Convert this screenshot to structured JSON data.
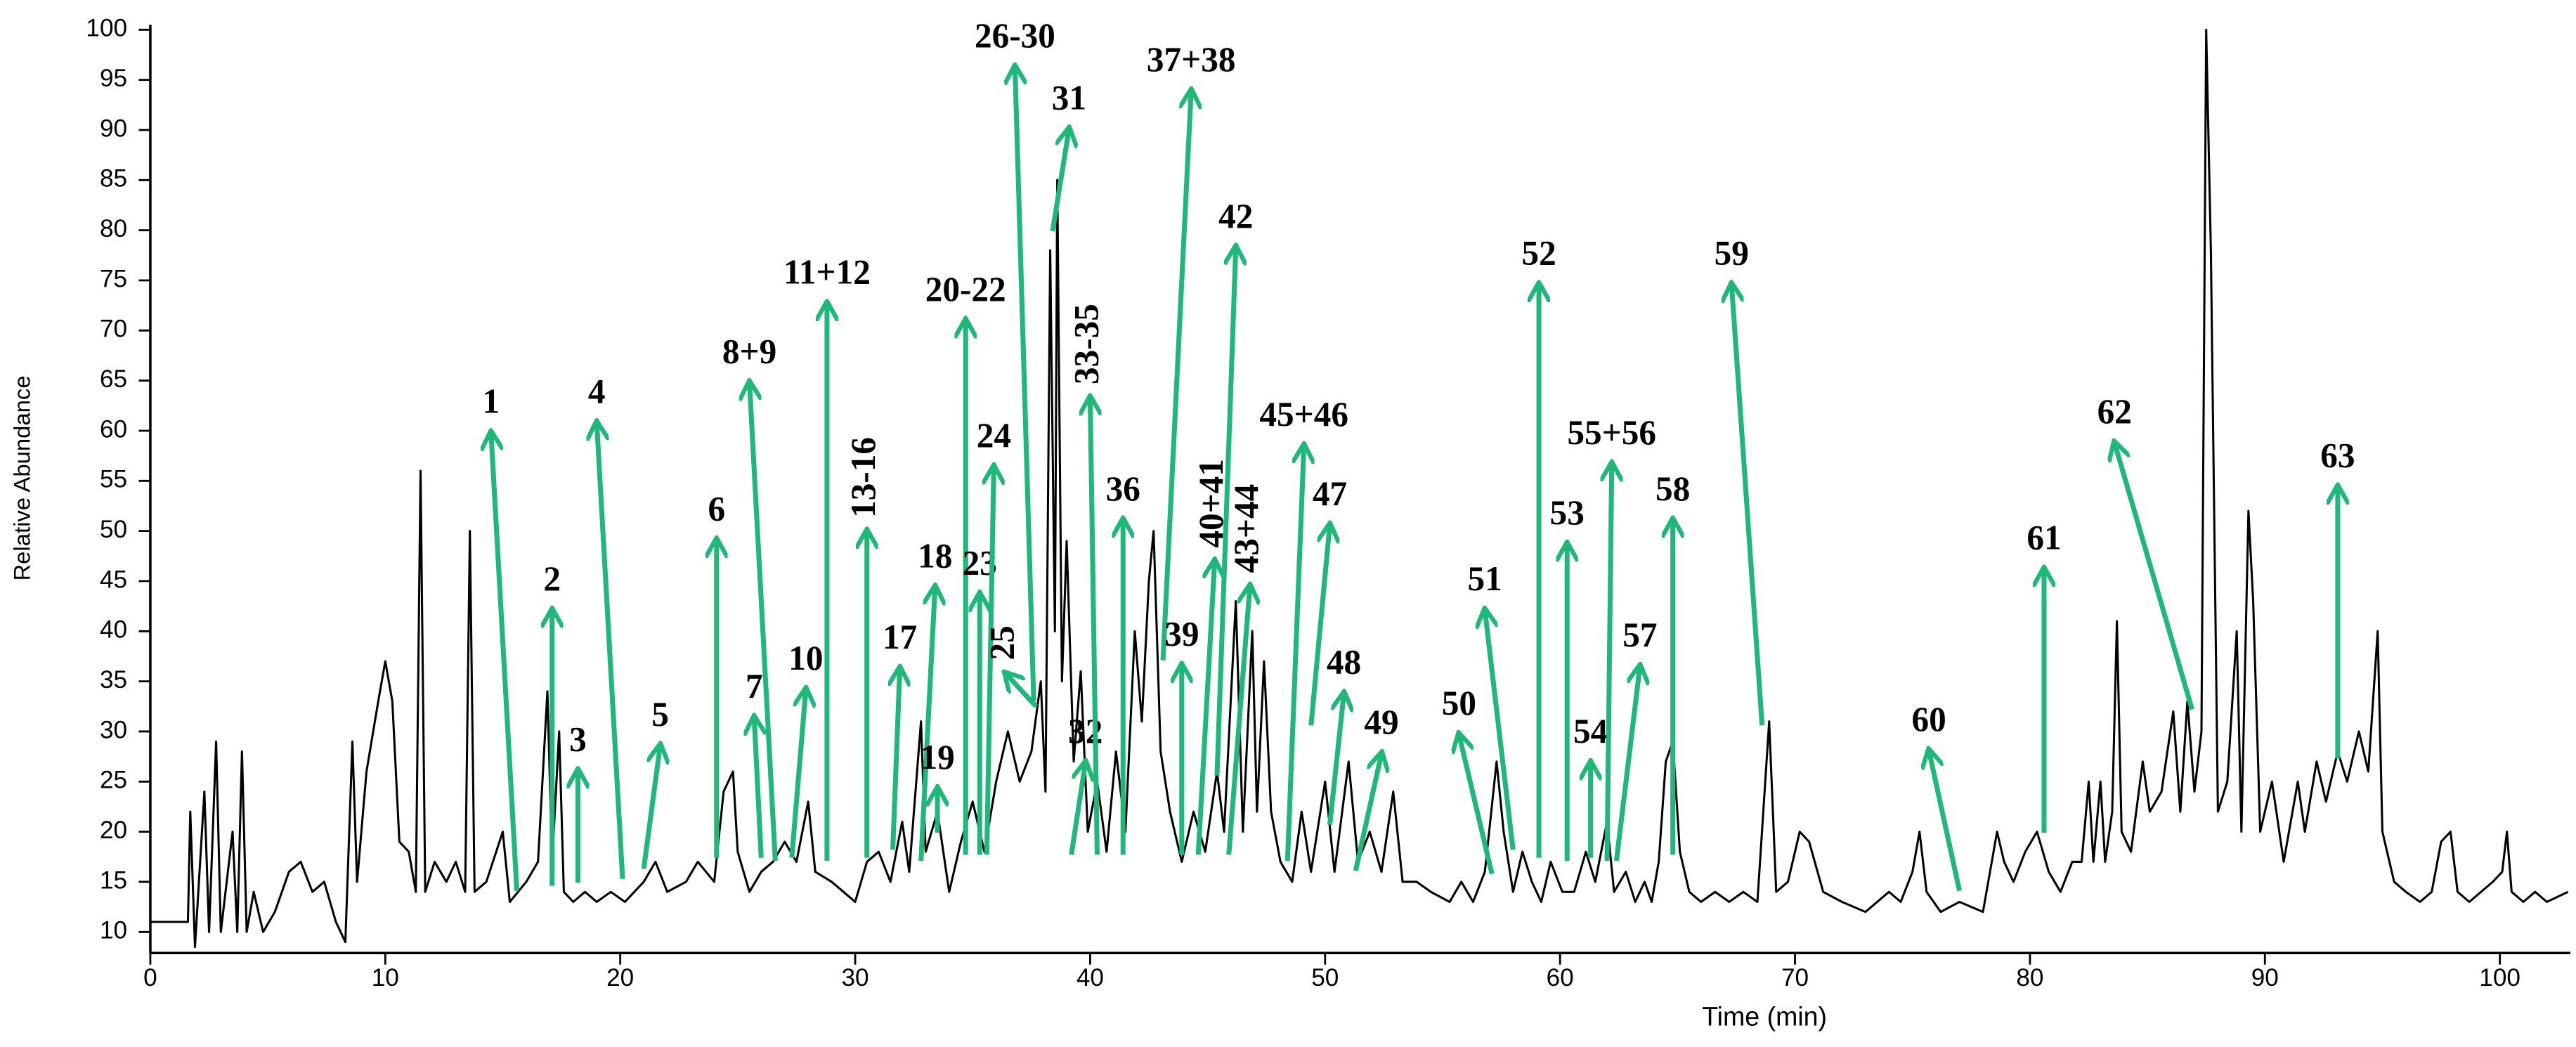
{
  "chart_data": {
    "type": "line",
    "x_label": "Time (min)",
    "y_label": "Relative Abundance",
    "xlim": [
      0,
      103
    ],
    "ylim": [
      7.9,
      100.5
    ],
    "xticks": [
      0,
      10,
      20,
      30,
      40,
      50,
      60,
      70,
      80,
      90,
      100
    ],
    "yticks": [
      10,
      15,
      20,
      25,
      30,
      35,
      40,
      45,
      50,
      55,
      60,
      65,
      70,
      75,
      80,
      85,
      90,
      95,
      100
    ],
    "color": "#000000",
    "annotation_color": "#1fb87a",
    "x": [
      0,
      1.6,
      1.7,
      1.9,
      2.3,
      2.5,
      2.8,
      3.0,
      3.5,
      3.7,
      3.9,
      4.1,
      4.4,
      4.8,
      5.3,
      5.9,
      6.4,
      6.9,
      7.4,
      7.9,
      8.3,
      8.6,
      8.8,
      9.2,
      9.7,
      10.0,
      10.3,
      10.6,
      11.0,
      11.3,
      11.5,
      11.7,
      12.1,
      12.6,
      13.0,
      13.4,
      13.6,
      13.8,
      14.3,
      15.0,
      15.3,
      16.0,
      16.5,
      16.9,
      17.1,
      17.4,
      17.6,
      18.0,
      18.5,
      19.0,
      19.6,
      20.2,
      21.0,
      21.5,
      22.0,
      22.8,
      23.3,
      24.0,
      24.4,
      24.8,
      25.0,
      25.5,
      26.0,
      26.5,
      27.0,
      27.5,
      28.0,
      28.3,
      29.0,
      29.5,
      30.0,
      30.5,
      31.0,
      31.5,
      32.0,
      32.3,
      32.8,
      33.0,
      33.5,
      34.0,
      34.5,
      35.0,
      35.5,
      36.0,
      36.5,
      37.0,
      37.5,
      37.9,
      38.1,
      38.3,
      38.5,
      38.6,
      38.8,
      39.0,
      39.3,
      39.6,
      39.9,
      40.3,
      40.7,
      41.1,
      41.5,
      41.9,
      42.2,
      42.5,
      42.7,
      43.0,
      43.4,
      43.9,
      44.4,
      44.9,
      45.4,
      45.7,
      46.2,
      46.5,
      46.9,
      47.1,
      47.4,
      47.7,
      48.1,
      48.6,
      49.0,
      49.4,
      50.0,
      50.4,
      51.0,
      51.4,
      51.9,
      52.4,
      52.9,
      53.3,
      53.9,
      54.5,
      55.3,
      55.8,
      56.3,
      56.8,
      57.3,
      57.6,
      58.0,
      58.4,
      58.8,
      59.2,
      59.6,
      60.1,
      60.6,
      61.1,
      61.5,
      62.0,
      62.3,
      62.8,
      63.2,
      63.6,
      63.9,
      64.2,
      64.5,
      64.8,
      65.1,
      65.5,
      66.0,
      66.6,
      67.2,
      67.8,
      68.4,
      68.9,
      69.2,
      69.7,
      70.2,
      70.6,
      71.2,
      72.0,
      73.0,
      74.0,
      74.5,
      75.0,
      75.3,
      75.6,
      76.2,
      77.0,
      78.0,
      78.6,
      78.9,
      79.3,
      79.8,
      80.3,
      80.8,
      81.3,
      81.8,
      82.2,
      82.5,
      82.7,
      83.0,
      83.2,
      83.5,
      83.7,
      83.9,
      84.3,
      84.8,
      85.1,
      85.6,
      86.1,
      86.4,
      86.7,
      87.0,
      87.3,
      87.5,
      87.7,
      88.0,
      88.4,
      88.8,
      89.0,
      89.3,
      89.5,
      89.8,
      90.3,
      90.8,
      91.4,
      91.7,
      92.2,
      92.6,
      93.1,
      93.5,
      94.0,
      94.4,
      94.8,
      95.0,
      95.5,
      96.0,
      96.6,
      97.1,
      97.5,
      97.9,
      98.2,
      98.7,
      99.2,
      99.7,
      100.1,
      100.3,
      100.5,
      101.0,
      101.5,
      102.0,
      102.9
    ],
    "values": [
      11,
      11,
      22,
      8.5,
      24,
      10,
      29,
      10,
      20,
      10,
      28,
      10,
      14,
      10,
      12,
      16,
      17,
      14,
      15,
      11,
      9,
      29,
      15,
      26,
      33,
      37,
      33,
      19,
      18,
      14,
      56,
      14,
      17,
      15,
      17,
      14,
      50,
      14,
      15,
      20,
      13,
      15,
      17,
      34,
      17,
      30,
      14,
      13,
      14,
      13,
      14,
      13,
      15,
      17,
      14,
      15,
      17,
      15,
      24,
      26,
      18,
      14,
      16,
      17,
      19,
      17,
      23,
      16,
      15,
      14,
      13,
      17,
      18,
      15,
      21,
      16,
      31,
      18,
      22,
      14,
      19,
      23,
      18,
      25,
      30,
      25,
      28,
      35,
      24,
      78,
      40,
      85,
      35,
      49,
      27,
      36,
      20,
      25,
      18,
      28,
      20,
      40,
      31,
      45,
      50,
      28,
      22,
      17,
      22,
      18,
      26,
      20,
      43,
      20,
      40,
      22,
      37,
      22,
      17,
      15,
      22,
      16,
      25,
      16,
      27,
      17,
      20,
      16,
      24,
      15,
      15,
      14,
      13,
      15,
      13,
      16,
      27,
      20,
      14,
      18,
      15,
      13,
      17,
      14,
      14,
      18,
      15,
      21,
      14,
      16,
      13,
      15,
      13,
      17,
      27,
      29,
      18,
      14,
      13,
      14,
      13,
      14,
      13,
      31,
      14,
      15,
      20,
      19,
      14,
      13,
      12,
      14,
      13,
      16,
      20,
      14,
      12,
      13,
      12,
      20,
      17,
      15,
      18,
      20,
      16,
      14,
      17,
      17,
      25,
      17,
      25,
      17,
      22,
      41,
      20,
      18,
      27,
      22,
      24,
      32,
      22,
      33,
      24,
      30,
      100,
      78,
      22,
      25,
      40,
      20,
      52,
      43,
      20,
      25,
      17,
      25,
      20,
      27,
      23,
      28,
      25,
      30,
      26,
      40,
      20,
      15,
      14,
      13,
      14,
      19,
      20,
      14,
      13,
      14,
      15,
      16,
      20,
      14,
      13,
      14,
      13,
      14
    ],
    "annotations": [
      {
        "text": "1",
        "xy": [
          15.6,
          14.1
        ],
        "xytext": [
          14.5,
          59.8
        ]
      },
      {
        "text": "2",
        "xy": [
          17.1,
          14.6
        ],
        "xytext": [
          17.1,
          42.1
        ]
      },
      {
        "text": "3",
        "xy": [
          18.2,
          14.9
        ],
        "xytext": [
          18.2,
          26.1
        ]
      },
      {
        "text": "4",
        "xy": [
          20.1,
          15.3
        ],
        "xytext": [
          19.0,
          60.8
        ]
      },
      {
        "text": "5",
        "xy": [
          21.0,
          16.3
        ],
        "xytext": [
          21.7,
          28.6
        ]
      },
      {
        "text": "6",
        "xy": [
          24.1,
          17.4
        ],
        "xytext": [
          24.1,
          49.1
        ]
      },
      {
        "text": "7",
        "xy": [
          26.0,
          17.4
        ],
        "xytext": [
          25.7,
          31.4
        ]
      },
      {
        "text": "8+9",
        "xy": [
          26.6,
          17.1
        ],
        "xytext": [
          25.5,
          64.8
        ]
      },
      {
        "text": "10",
        "xy": [
          27.3,
          17.4
        ],
        "xytext": [
          27.9,
          34.2
        ]
      },
      {
        "text": "11+12",
        "xy": [
          28.8,
          17.1
        ],
        "xytext": [
          28.8,
          72.7
        ]
      },
      {
        "text": "13-16",
        "xy": [
          30.5,
          17.4
        ],
        "xytext": [
          30.5,
          50.0
        ],
        "vertical": true
      },
      {
        "text": "17",
        "xy": [
          31.6,
          18.2
        ],
        "xytext": [
          31.9,
          36.3
        ]
      },
      {
        "text": "18",
        "xy": [
          32.8,
          17.1
        ],
        "xytext": [
          33.4,
          44.4
        ]
      },
      {
        "text": "19",
        "xy": [
          33.5,
          19.9
        ],
        "xytext": [
          33.5,
          24.3
        ]
      },
      {
        "text": "20-22",
        "xy": [
          34.7,
          17.7
        ],
        "xytext": [
          34.7,
          71.0
        ]
      },
      {
        "text": "23",
        "xy": [
          35.3,
          17.7
        ],
        "xytext": [
          35.3,
          43.7
        ]
      },
      {
        "text": "24",
        "xy": [
          35.6,
          17.7
        ],
        "xytext": [
          35.9,
          56.4
        ]
      },
      {
        "text": "25",
        "xy": [
          37.7,
          32.5
        ],
        "xytext": [
          36.4,
          35.8
        ],
        "vertical": true
      },
      {
        "text": "26-30",
        "xy": [
          37.6,
          33.0
        ],
        "xytext": [
          36.8,
          96.3
        ]
      },
      {
        "text": "31",
        "xy": [
          38.4,
          79.9
        ],
        "xytext": [
          39.1,
          90.1
        ]
      },
      {
        "text": "32",
        "xy": [
          39.2,
          17.7
        ],
        "xytext": [
          39.8,
          26.9
        ]
      },
      {
        "text": "33-35",
        "xy": [
          40.3,
          17.7
        ],
        "xytext": [
          40.0,
          63.3
        ],
        "vertical": true
      },
      {
        "text": "36",
        "xy": [
          41.4,
          17.7
        ],
        "xytext": [
          41.4,
          51.1
        ]
      },
      {
        "text": "37+38",
        "xy": [
          43.1,
          37.1
        ],
        "xytext": [
          44.3,
          93.9
        ]
      },
      {
        "text": "39",
        "xy": [
          43.9,
          17.7
        ],
        "xytext": [
          43.9,
          36.6
        ]
      },
      {
        "text": "40+41",
        "xy": [
          44.6,
          17.7
        ],
        "xytext": [
          45.3,
          47.0
        ],
        "vertical": true
      },
      {
        "text": "42",
        "xy": [
          45.4,
          25.6
        ],
        "xytext": [
          46.2,
          78.3
        ]
      },
      {
        "text": "43+44",
        "xy": [
          45.9,
          17.7
        ],
        "xytext": [
          46.8,
          44.5
        ],
        "vertical": true
      },
      {
        "text": "45+46",
        "xy": [
          48.4,
          17.1
        ],
        "xytext": [
          49.1,
          58.5
        ]
      },
      {
        "text": "47",
        "xy": [
          49.4,
          30.6
        ],
        "xytext": [
          50.2,
          50.6
        ]
      },
      {
        "text": "48",
        "xy": [
          50.2,
          20.7
        ],
        "xytext": [
          50.8,
          33.8
        ]
      },
      {
        "text": "49",
        "xy": [
          51.3,
          16.1
        ],
        "xytext": [
          52.4,
          27.8
        ]
      },
      {
        "text": "50",
        "xy": [
          57.1,
          15.8
        ],
        "xytext": [
          55.7,
          29.7
        ]
      },
      {
        "text": "51",
        "xy": [
          58.0,
          18.2
        ],
        "xytext": [
          56.8,
          42.1
        ]
      },
      {
        "text": "52",
        "xy": [
          59.1,
          17.4
        ],
        "xytext": [
          59.1,
          74.6
        ]
      },
      {
        "text": "53",
        "xy": [
          60.3,
          17.1
        ],
        "xytext": [
          60.3,
          48.7
        ]
      },
      {
        "text": "54",
        "xy": [
          61.3,
          17.4
        ],
        "xytext": [
          61.3,
          26.9
        ]
      },
      {
        "text": "55+56",
        "xy": [
          62.0,
          17.1
        ],
        "xytext": [
          62.2,
          56.7
        ]
      },
      {
        "text": "57",
        "xy": [
          62.4,
          17.1
        ],
        "xytext": [
          63.4,
          36.5
        ]
      },
      {
        "text": "58",
        "xy": [
          64.8,
          17.7
        ],
        "xytext": [
          64.8,
          51.1
        ]
      },
      {
        "text": "59",
        "xy": [
          68.6,
          30.6
        ],
        "xytext": [
          67.3,
          74.6
        ]
      },
      {
        "text": "60",
        "xy": [
          77.0,
          14.1
        ],
        "xytext": [
          75.7,
          28.1
        ]
      },
      {
        "text": "61",
        "xy": [
          80.6,
          19.9
        ],
        "xytext": [
          80.6,
          46.2
        ]
      },
      {
        "text": "62",
        "xy": [
          86.9,
          32.2
        ],
        "xytext": [
          83.6,
          58.8
        ]
      },
      {
        "text": "63",
        "xy": [
          93.1,
          27.3
        ],
        "xytext": [
          93.1,
          54.4
        ]
      }
    ]
  }
}
